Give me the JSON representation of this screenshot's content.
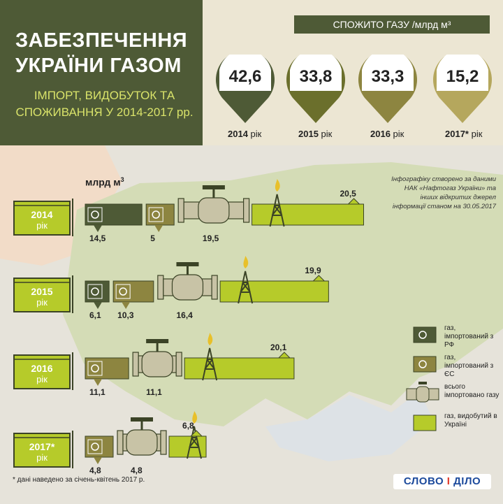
{
  "header": {
    "title_line1": "ЗАБЕЗПЕЧЕННЯ",
    "title_line2": "УКРАЇНИ ГАЗОМ",
    "subtitle_line1": "ІМПОРТ, ВИДОБУТОК ТА",
    "subtitle_line2": "СПОЖИВАННЯ У 2014-2017 рр."
  },
  "consumption": {
    "label": "СПОЖИТО ГАЗУ /млрд м³",
    "items": [
      {
        "value": "42,6",
        "year": "2014",
        "suffix": " рік"
      },
      {
        "value": "33,8",
        "year": "2015",
        "suffix": " рік"
      },
      {
        "value": "33,3",
        "year": "2016",
        "suffix": " рік"
      },
      {
        "value": "15,2",
        "year": "2017*",
        "suffix": " рік"
      }
    ]
  },
  "units": "млрд м",
  "units_sup": "3",
  "source_note": "Інфографіку створено за даними НАК «Нафтогаз України» та інших відкритих джерел інформації станом на 30.05.2017",
  "rows": [
    {
      "year": "2014",
      "word": "рік",
      "rf": "14,5",
      "eu": "5",
      "total": "19,5",
      "domestic": "20,5"
    },
    {
      "year": "2015",
      "word": "рік",
      "rf": "6,1",
      "eu": "10,3",
      "total": "16,4",
      "domestic": "19,9"
    },
    {
      "year": "2016",
      "word": "рік",
      "rf": "",
      "eu": "11,1",
      "total": "11,1",
      "domestic": "20,1"
    },
    {
      "year": "2017*",
      "word": "рік",
      "rf": "",
      "eu": "4,8",
      "total": "4,8",
      "domestic": "6,8"
    }
  ],
  "legend": [
    {
      "label": "газ, імпортований з РФ",
      "color": "#4e5a36"
    },
    {
      "label": "газ, імпортований з ЄС",
      "color": "#8d8540"
    },
    {
      "label": "всього імпортовано газу",
      "color": "#c8c3a6"
    },
    {
      "label": "газ, видобутий в Україні",
      "color": "#b6cb2a"
    }
  ],
  "footnote": "* дані наведено за січень-квітень 2017 р.",
  "logo": {
    "left": "СЛОВО ",
    "mid": "І",
    "right": " ДІЛО"
  },
  "chart_data": {
    "type": "bar",
    "title": "ЗАБЕЗПЕЧЕННЯ УКРАЇНИ ГАЗОМ",
    "subtitle": "ІМПОРТ, ВИДОБУТОК ТА СПОЖИВАННЯ У 2014-2017 рр.",
    "ylabel": "млрд м³",
    "categories": [
      "2014",
      "2015",
      "2016",
      "2017*"
    ],
    "series": [
      {
        "name": "газ, імпортований з РФ",
        "values": [
          14.5,
          6.1,
          0,
          0
        ]
      },
      {
        "name": "газ, імпортований з ЄС",
        "values": [
          5,
          10.3,
          11.1,
          4.8
        ]
      },
      {
        "name": "всього імпортовано газу",
        "values": [
          19.5,
          16.4,
          11.1,
          4.8
        ]
      },
      {
        "name": "газ, видобутий в Україні",
        "values": [
          20.5,
          19.9,
          20.1,
          6.8
        ]
      },
      {
        "name": "СПОЖИТО ГАЗУ /млрд м³",
        "values": [
          42.6,
          33.8,
          33.3,
          15.2
        ]
      }
    ]
  }
}
